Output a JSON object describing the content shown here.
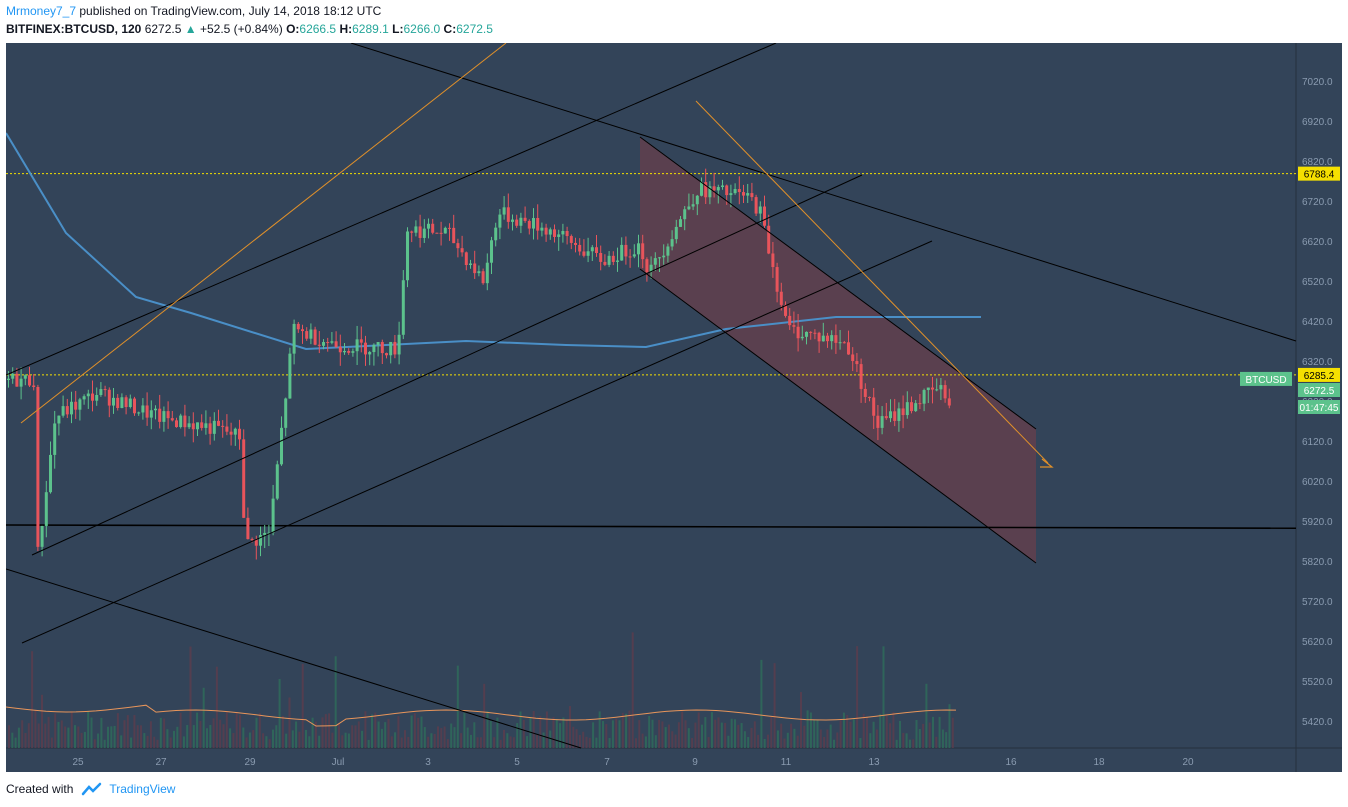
{
  "header": {
    "user": "Mrmoney7_7",
    "published": "published on TradingView.com, July 14, 2018 18:12 UTC",
    "symbol": "BITFINEX:BTCUSD, 120",
    "last": "6272.5",
    "change_arrow": "▲",
    "change": "+52.5 (+0.84%)",
    "open_label": "O:",
    "open": "6266.5",
    "high_label": "H:",
    "high": "6289.1",
    "low_label": "L:",
    "low": "6266.0",
    "close_label": "C:",
    "close": "6272.5"
  },
  "footer": {
    "created_with": "Created with",
    "brand": "TradingView"
  },
  "colors": {
    "background": "#334459",
    "up": "#5cc28c",
    "down": "#e8545b",
    "ma": "#4a8fc7",
    "orange": "#e0902a",
    "level": "#f5e000",
    "channel_fill": "#6b3e4c"
  },
  "chart_data": {
    "type": "candlestick",
    "symbol": "BTCUSD",
    "y_axis_ticks": [
      "7020.0",
      "6920.0",
      "6820.0",
      "6720.0",
      "6620.0",
      "6520.0",
      "6420.0",
      "6320.0",
      "6220.0",
      "6120.0",
      "6020.0",
      "5920.0",
      "5820.0",
      "5720.0",
      "5620.0",
      "5520.0",
      "5420.0"
    ],
    "x_axis_ticks": [
      "25",
      "27",
      "29",
      "Jul",
      "3",
      "5",
      "7",
      "9",
      "11",
      "13",
      "16",
      "18",
      "20"
    ],
    "price_labels": [
      {
        "label": "6788.4",
        "value": 6788.4
      },
      {
        "label": "6285.2",
        "value": 6285.2
      },
      {
        "label": "6272.5",
        "value": 6272.5
      }
    ],
    "countdown": "01:47:45",
    "symbol_tag": "BTCUSD",
    "horizontal_levels": [
      6788.4,
      6285.2
    ],
    "support_line_start": 5910,
    "support_line_end": 5902,
    "price_path_key_points": [
      {
        "x": "24",
        "y": 6200
      },
      {
        "x": "24.5",
        "y": 5830
      },
      {
        "x": "25",
        "y": 6180
      },
      {
        "x": "26",
        "y": 6240
      },
      {
        "x": "27",
        "y": 6180
      },
      {
        "x": "28",
        "y": 6150
      },
      {
        "x": "28.8",
        "y": 6130
      },
      {
        "x": "29",
        "y": 5860
      },
      {
        "x": "29.5",
        "y": 5890
      },
      {
        "x": "30",
        "y": 6400
      },
      {
        "x": "Jul 1",
        "y": 6360
      },
      {
        "x": "Jul 2",
        "y": 6350
      },
      {
        "x": "Jul 2.5",
        "y": 6650
      },
      {
        "x": "Jul 3",
        "y": 6640
      },
      {
        "x": "Jul 4",
        "y": 6520
      },
      {
        "x": "Jul 4.5",
        "y": 6690
      },
      {
        "x": "Jul 5",
        "y": 6650
      },
      {
        "x": "Jul 6",
        "y": 6570
      },
      {
        "x": "Jul 7",
        "y": 6610
      },
      {
        "x": "Jul 7.7",
        "y": 6540
      },
      {
        "x": "Jul 8",
        "y": 6750
      },
      {
        "x": "Jul 9",
        "y": 6730
      },
      {
        "x": "Jul 10",
        "y": 6700
      },
      {
        "x": "Jul 10.5",
        "y": 6400
      },
      {
        "x": "Jul 11",
        "y": 6370
      },
      {
        "x": "Jul 12",
        "y": 6360
      },
      {
        "x": "Jul 12.5",
        "y": 6160
      },
      {
        "x": "Jul 13",
        "y": 6250
      },
      {
        "x": "Jul 14",
        "y": 6220
      },
      {
        "x": "Jul 14.5",
        "y": 6272.5
      }
    ],
    "moving_average_key_points": [
      {
        "x": "24",
        "y": 6890
      },
      {
        "x": "26",
        "y": 6640
      },
      {
        "x": "28",
        "y": 6480
      },
      {
        "x": "29",
        "y": 6440
      },
      {
        "x": "Jul 2",
        "y": 6350
      },
      {
        "x": "Jul 4",
        "y": 6360
      },
      {
        "x": "Jul 6",
        "y": 6370
      },
      {
        "x": "Jul 8",
        "y": 6360
      },
      {
        "x": "Jul 9",
        "y": 6355
      },
      {
        "x": "Jul 11",
        "y": 6400
      },
      {
        "x": "Jul 13",
        "y": 6430
      },
      {
        "x": "Jul 15",
        "y": 6430
      }
    ]
  }
}
